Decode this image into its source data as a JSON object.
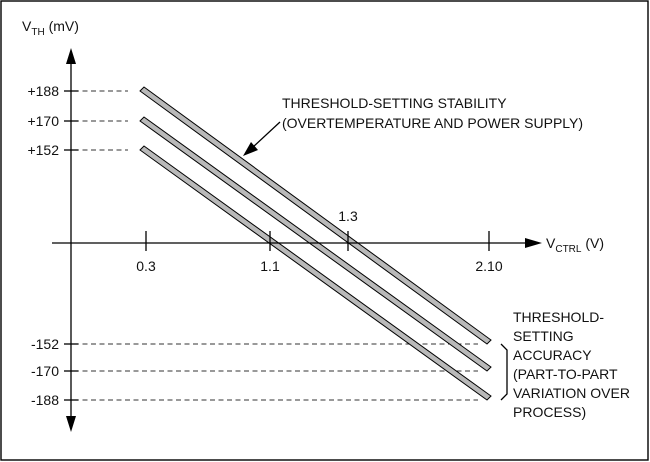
{
  "y_axis": {
    "label_main": "V",
    "label_sub": "TH",
    "label_unit": " (mV)",
    "ticks": [
      "+188",
      "+170",
      "+152",
      "-152",
      "-170",
      "-188"
    ]
  },
  "x_axis": {
    "label_main": "V",
    "label_sub": "CTRL",
    "label_unit": " (V)",
    "ticks_below": [
      "0.3",
      "1.1",
      "2.10"
    ],
    "tick_above": "1.3"
  },
  "annotations": {
    "stability": [
      "THRESHOLD-SETTING STABILITY",
      "(OVERTEMPERATURE AND POWER SUPPLY)"
    ],
    "accuracy": [
      "THRESHOLD-",
      "SETTING",
      "ACCURACY",
      "(PART-TO-PART",
      "VARIATION OVER",
      "PROCESS)"
    ]
  },
  "colors": {
    "band_fill": "#b9b9b9",
    "stroke": "#000000"
  }
}
